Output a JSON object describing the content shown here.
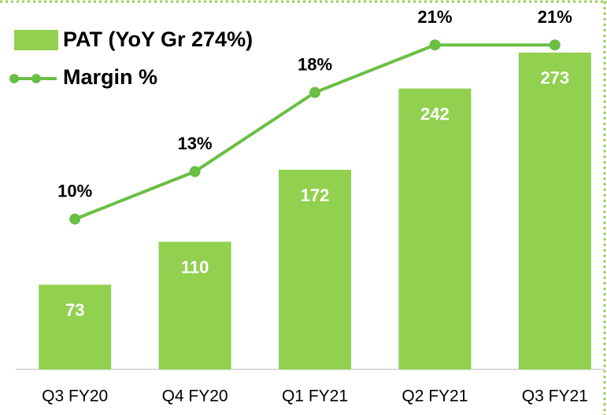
{
  "chart_data": {
    "type": "bar",
    "categories": [
      "Q3 FY20",
      "Q4 FY20",
      "Q1 FY21",
      "Q2 FY21",
      "Q3 FY21"
    ],
    "series": [
      {
        "name": "PAT (YoY Gr 274%)",
        "color": "#92d050",
        "values": [
          73,
          110,
          172,
          242,
          273
        ]
      },
      {
        "name": "Margin %",
        "color": "#6abf45",
        "type": "line",
        "axis": "y2",
        "values": [
          10,
          13,
          18,
          21,
          21
        ],
        "value_labels": [
          "10%",
          "13%",
          "18%",
          "21%",
          "21%"
        ]
      }
    ],
    "ylim": [
      0,
      300
    ],
    "y2lim": [
      0.5,
      22.5
    ]
  }
}
